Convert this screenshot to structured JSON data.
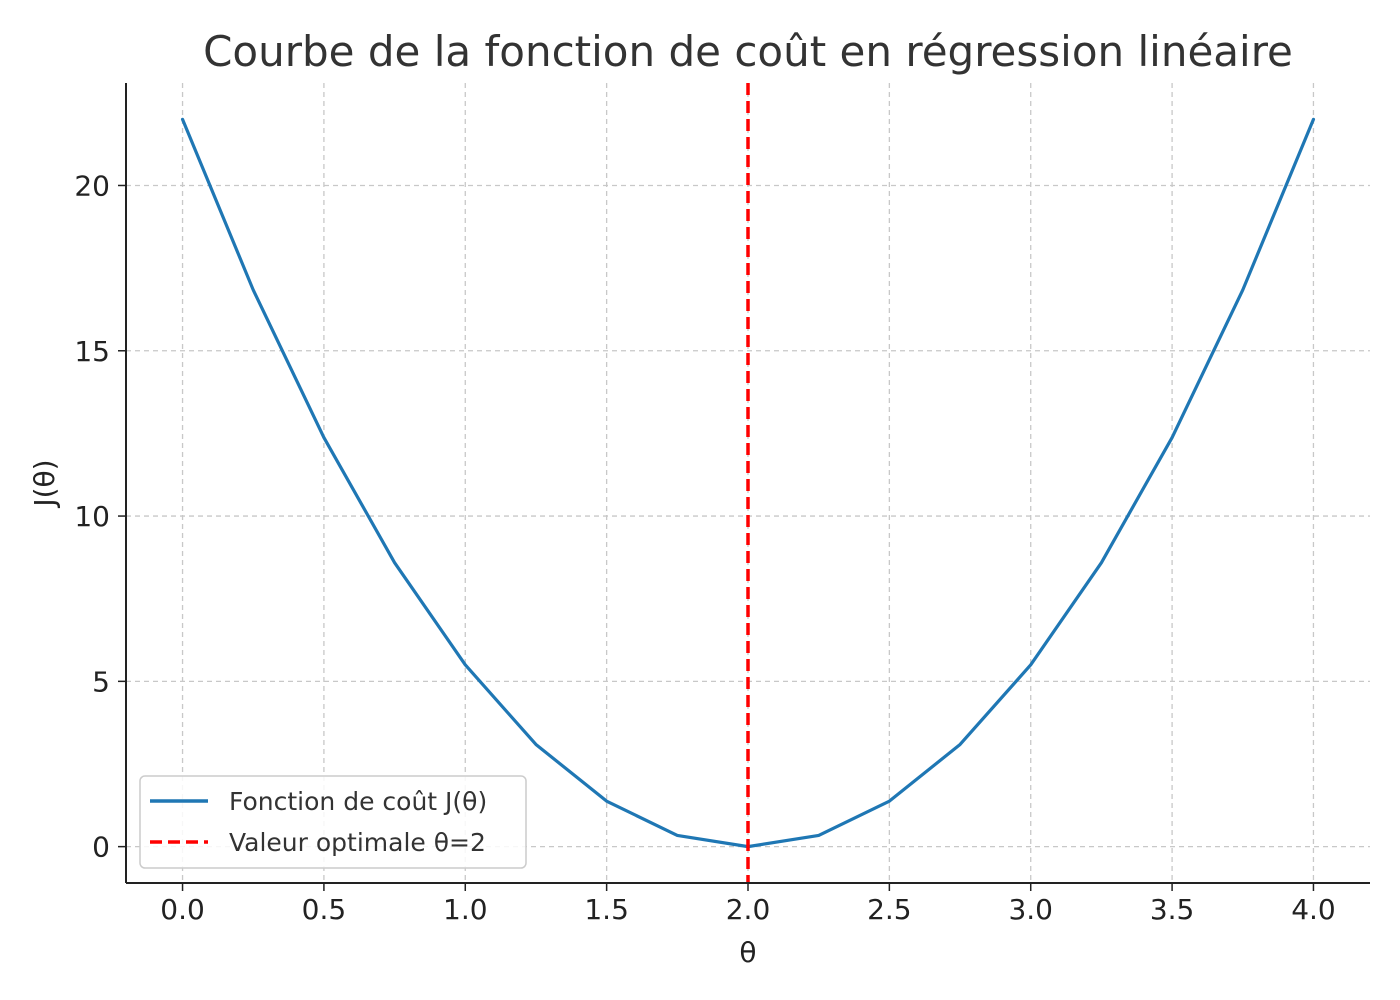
{
  "chart_data": {
    "type": "line",
    "title": "Courbe de la fonction de coût en régression linéaire",
    "xlabel": "θ",
    "ylabel": "J(θ)",
    "xlim": [
      -0.2,
      4.2
    ],
    "ylim": [
      -1.1,
      23.1
    ],
    "xticks": [
      0.0,
      0.5,
      1.0,
      1.5,
      2.0,
      2.5,
      3.0,
      3.5,
      4.0
    ],
    "xtick_labels": [
      "0.0",
      "0.5",
      "1.0",
      "1.5",
      "2.0",
      "2.5",
      "3.0",
      "3.5",
      "4.0"
    ],
    "yticks": [
      0,
      5,
      10,
      15,
      20
    ],
    "ytick_labels": [
      "0",
      "5",
      "10",
      "15",
      "20"
    ],
    "grid": true,
    "legend_position": "lower-left",
    "series": [
      {
        "name": "Fonction de coût J(θ)",
        "style": "solid",
        "color": "#1f77b4",
        "x": [
          0.0,
          0.25,
          0.5,
          0.75,
          1.0,
          1.25,
          1.5,
          1.75,
          2.0,
          2.25,
          2.5,
          2.75,
          3.0,
          3.25,
          3.5,
          3.75,
          4.0
        ],
        "y": [
          22.0,
          16.84,
          12.375,
          8.59,
          5.5,
          3.09,
          1.375,
          0.34,
          0.0,
          0.34,
          1.375,
          3.09,
          5.5,
          8.59,
          12.375,
          16.84,
          22.0
        ]
      }
    ],
    "vlines": [
      {
        "name": "Valeur optimale θ=2",
        "x": 2.0,
        "style": "dashed",
        "color": "#ff0000"
      }
    ]
  }
}
